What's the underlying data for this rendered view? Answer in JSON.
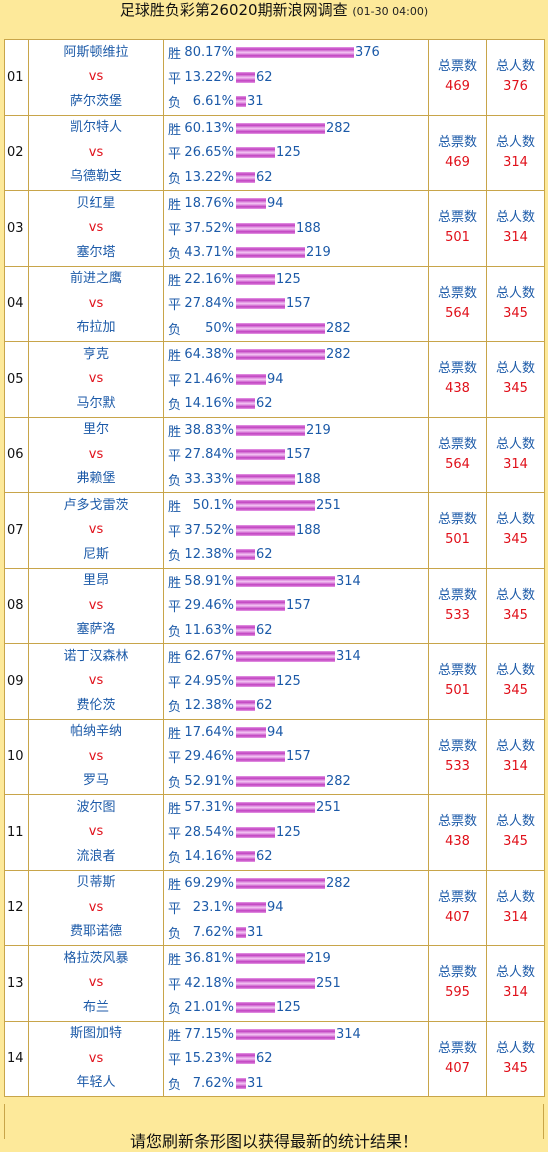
{
  "header": {
    "title": "足球胜负彩第26020期新浪网调查",
    "time": "(01-30 04:00)"
  },
  "labels": {
    "win": "胜",
    "draw": "平",
    "lose": "负",
    "vs": "vs",
    "total_votes": "总票数",
    "total_people": "总人数"
  },
  "matches": [
    {
      "num": "01",
      "home": "阿斯顿维拉",
      "away": "萨尔茨堡",
      "win": {
        "pct": "80.17%",
        "count": 376
      },
      "draw": {
        "pct": "13.22%",
        "count": 62
      },
      "lose": {
        "pct": "6.61%",
        "count": 31
      },
      "votes": 469,
      "people": 376
    },
    {
      "num": "02",
      "home": "凯尔特人",
      "away": "乌德勒支",
      "win": {
        "pct": "60.13%",
        "count": 282
      },
      "draw": {
        "pct": "26.65%",
        "count": 125
      },
      "lose": {
        "pct": "13.22%",
        "count": 62
      },
      "votes": 469,
      "people": 314
    },
    {
      "num": "03",
      "home": "贝红星",
      "away": "塞尔塔",
      "win": {
        "pct": "18.76%",
        "count": 94
      },
      "draw": {
        "pct": "37.52%",
        "count": 188
      },
      "lose": {
        "pct": "43.71%",
        "count": 219
      },
      "votes": 501,
      "people": 314
    },
    {
      "num": "04",
      "home": "前进之鹰",
      "away": "布拉加",
      "win": {
        "pct": "22.16%",
        "count": 125
      },
      "draw": {
        "pct": "27.84%",
        "count": 157
      },
      "lose": {
        "pct": "50%",
        "count": 282
      },
      "votes": 564,
      "people": 345
    },
    {
      "num": "05",
      "home": "亨克",
      "away": "马尔默",
      "win": {
        "pct": "64.38%",
        "count": 282
      },
      "draw": {
        "pct": "21.46%",
        "count": 94
      },
      "lose": {
        "pct": "14.16%",
        "count": 62
      },
      "votes": 438,
      "people": 345
    },
    {
      "num": "06",
      "home": "里尔",
      "away": "弗赖堡",
      "win": {
        "pct": "38.83%",
        "count": 219
      },
      "draw": {
        "pct": "27.84%",
        "count": 157
      },
      "lose": {
        "pct": "33.33%",
        "count": 188
      },
      "votes": 564,
      "people": 314
    },
    {
      "num": "07",
      "home": "卢多戈雷茨",
      "away": "尼斯",
      "win": {
        "pct": "50.1%",
        "count": 251
      },
      "draw": {
        "pct": "37.52%",
        "count": 188
      },
      "lose": {
        "pct": "12.38%",
        "count": 62
      },
      "votes": 501,
      "people": 345
    },
    {
      "num": "08",
      "home": "里昂",
      "away": "塞萨洛",
      "win": {
        "pct": "58.91%",
        "count": 314
      },
      "draw": {
        "pct": "29.46%",
        "count": 157
      },
      "lose": {
        "pct": "11.63%",
        "count": 62
      },
      "votes": 533,
      "people": 345
    },
    {
      "num": "09",
      "home": "诺丁汉森林",
      "away": "费伦茨",
      "win": {
        "pct": "62.67%",
        "count": 314
      },
      "draw": {
        "pct": "24.95%",
        "count": 125
      },
      "lose": {
        "pct": "12.38%",
        "count": 62
      },
      "votes": 501,
      "people": 345
    },
    {
      "num": "10",
      "home": "帕纳辛纳",
      "away": "罗马",
      "win": {
        "pct": "17.64%",
        "count": 94
      },
      "draw": {
        "pct": "29.46%",
        "count": 157
      },
      "lose": {
        "pct": "52.91%",
        "count": 282
      },
      "votes": 533,
      "people": 314
    },
    {
      "num": "11",
      "home": "波尔图",
      "away": "流浪者",
      "win": {
        "pct": "57.31%",
        "count": 251
      },
      "draw": {
        "pct": "28.54%",
        "count": 125
      },
      "lose": {
        "pct": "14.16%",
        "count": 62
      },
      "votes": 438,
      "people": 345
    },
    {
      "num": "12",
      "home": "贝蒂斯",
      "away": "费耶诺德",
      "win": {
        "pct": "69.29%",
        "count": 282
      },
      "draw": {
        "pct": "23.1%",
        "count": 94
      },
      "lose": {
        "pct": "7.62%",
        "count": 31
      },
      "votes": 407,
      "people": 314
    },
    {
      "num": "13",
      "home": "格拉茨风暴",
      "away": "布兰",
      "win": {
        "pct": "36.81%",
        "count": 219
      },
      "draw": {
        "pct": "42.18%",
        "count": 251
      },
      "lose": {
        "pct": "21.01%",
        "count": 125
      },
      "votes": 595,
      "people": 314
    },
    {
      "num": "14",
      "home": "斯图加特",
      "away": "年轻人",
      "win": {
        "pct": "77.15%",
        "count": 314
      },
      "draw": {
        "pct": "15.23%",
        "count": 62
      },
      "lose": {
        "pct": "7.62%",
        "count": 31
      },
      "votes": 407,
      "people": 345
    }
  ],
  "footer": {
    "text": "请您刷新条形图以获得最新的统计结果！"
  }
}
